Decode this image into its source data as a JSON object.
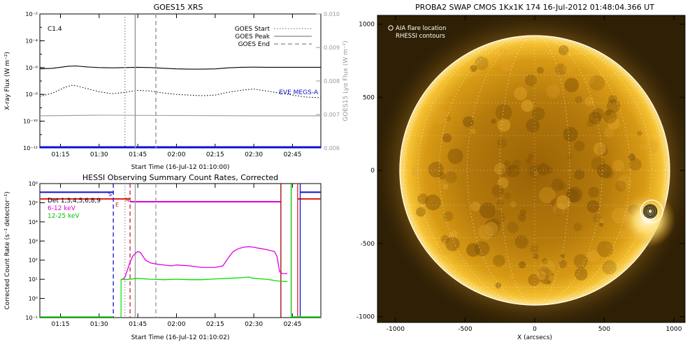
{
  "goes": {
    "title": "GOES15 XRS",
    "flare_class": "C1.4",
    "xlabel": "Start Time (16-Jul-12 01:10:00)",
    "ylabel": "X-ray Flux (W m⁻²)",
    "ylabel_right": "GOES15 Lyα Flux (W m⁻²)",
    "eve_label": "EVE MEGS-A",
    "legend": [
      {
        "label": "GOES Start",
        "style": "dotted"
      },
      {
        "label": "GOES Peak",
        "style": "solid"
      },
      {
        "label": "GOES End",
        "style": "dashed"
      }
    ]
  },
  "hessi": {
    "title": "HESSI Observing Summary Count Rates, Corrected",
    "xlabel": "Start Time (16-Jul-12 01:10:02)",
    "ylabel": "Corrected Count Rate (s⁻¹ detector⁻¹)",
    "legend": [
      {
        "label": "Det 1,3,4,5,6,8,9",
        "color": "#000000"
      },
      {
        "label": "6-12 keV",
        "color": "#e000e0"
      },
      {
        "label": "12-25 keV",
        "color": "#00e000"
      }
    ],
    "flags": {
      "S": "S",
      "N": "N",
      "E": "E"
    }
  },
  "swap": {
    "title": "PROBA2 SWAP CMOS 1Kx1K 174 16-Jul-2012 01:48:04.366 UT",
    "xlabel": "X (arcsecs)",
    "legend": [
      {
        "label": "AIA flare location",
        "symbol": "circle"
      },
      {
        "label": "RHESSI contours",
        "symbol": "none"
      }
    ]
  },
  "chart_data": [
    {
      "type": "line",
      "title": "GOES15 XRS",
      "xlabel": "Start Time (16-Jul-12 01:10:00)",
      "ylabel": "X-ray Flux (W m⁻²)",
      "ylabel_right": "GOES15 Lyα Flux (W m⁻²)",
      "x_ticks": [
        "01:15",
        "01:30",
        "01:45",
        "02:00",
        "02:15",
        "02:30",
        "02:45"
      ],
      "x_ticks_min": [
        15,
        30,
        45,
        60,
        75,
        90,
        105
      ],
      "xlim_min": [
        7,
        116
      ],
      "y_scale": "log",
      "ylim": [
        1e-12,
        0.01
      ],
      "y_ticks": [
        "10⁻¹²",
        "10⁻¹⁰",
        "10⁻⁸",
        "10⁻⁶",
        "10⁻⁴",
        "10⁻²"
      ],
      "y_tick_exp": [
        -12,
        -10,
        -8,
        -6,
        -4,
        -2
      ],
      "y_right_ticks": [
        "0.006",
        "0.007",
        "0.008",
        "0.009",
        "0.010"
      ],
      "y_right_values": [
        0.006,
        0.007,
        0.008,
        0.009,
        0.01
      ],
      "ylim_right": [
        0.006,
        0.01
      ],
      "series": [
        {
          "name": "",
          "color": "#000000",
          "style": "solid",
          "x": [
            7,
            12,
            18,
            21,
            25,
            30,
            35,
            40,
            45,
            50,
            55,
            60,
            65,
            70,
            75,
            80,
            85,
            90,
            95,
            100,
            105,
            110,
            116
          ],
          "log_y": [
            -6.1,
            -6.05,
            -5.9,
            -5.88,
            -5.95,
            -6.0,
            -6.02,
            -6.0,
            -5.98,
            -6.0,
            -6.05,
            -6.1,
            -6.12,
            -6.12,
            -6.1,
            -6.02,
            -5.98,
            -5.97,
            -5.98,
            -5.98,
            -5.98,
            -5.98,
            -5.98
          ]
        },
        {
          "name": "",
          "color": "#000000",
          "style": "dotted",
          "x": [
            7,
            12,
            17,
            20,
            25,
            30,
            35,
            40,
            45,
            50,
            55,
            60,
            65,
            70,
            75,
            80,
            85,
            90,
            95,
            100,
            105,
            110,
            116
          ],
          "log_y": [
            -8.15,
            -7.9,
            -7.45,
            -7.3,
            -7.55,
            -7.8,
            -7.95,
            -7.85,
            -7.7,
            -7.75,
            -7.9,
            -8.0,
            -8.05,
            -8.1,
            -8.05,
            -7.85,
            -7.7,
            -7.6,
            -7.75,
            -7.9,
            -8.05,
            -8.2,
            -8.25
          ]
        },
        {
          "name": "",
          "color": "#999999",
          "style": "solid",
          "x": [
            7,
            30,
            60,
            90,
            116
          ],
          "log_y": [
            -9.6,
            -9.55,
            -9.58,
            -9.6,
            -9.6
          ]
        },
        {
          "name": "EVE MEGS-A",
          "color": "#1010d0",
          "style": "thick",
          "x": [
            7,
            116
          ],
          "log_y": [
            -11.95,
            -11.95
          ]
        }
      ],
      "markers": [
        {
          "name": "GOES Start",
          "x": 40,
          "style": "dotted"
        },
        {
          "name": "GOES Peak",
          "x": 44,
          "style": "solid"
        },
        {
          "name": "GOES End",
          "x": 52,
          "style": "dashed"
        }
      ]
    },
    {
      "type": "line",
      "title": "HESSI Observing Summary Count Rates, Corrected",
      "xlabel": "Start Time (16-Jul-12 01:10:02)",
      "ylabel": "Corrected Count Rate (s⁻¹ detector⁻¹)",
      "x_ticks": [
        "01:15",
        "01:30",
        "01:45",
        "02:00",
        "02:15",
        "02:30",
        "02:45"
      ],
      "x_ticks_min": [
        15,
        30,
        45,
        60,
        75,
        90,
        105
      ],
      "xlim_min": [
        7,
        116
      ],
      "y_scale": "log",
      "ylim": [
        0.1,
        1000000.0
      ],
      "y_ticks": [
        "10⁻¹",
        "10⁰",
        "10¹",
        "10²",
        "10³",
        "10⁴",
        "10⁵",
        "10⁶"
      ],
      "y_tick_exp": [
        -1,
        0,
        1,
        2,
        3,
        4,
        5,
        6
      ],
      "series": [
        {
          "name": "6-12 keV",
          "color": "#e000e0",
          "x": [
            38.5,
            39,
            40,
            41,
            42,
            43,
            44,
            45,
            46,
            47,
            48,
            50,
            52,
            55,
            58,
            60,
            65,
            70,
            75,
            78,
            80,
            82,
            84,
            86,
            88,
            90,
            92,
            95,
            98,
            99,
            100,
            101,
            102,
            103
          ],
          "log_y": [
            1.0,
            1.0,
            1.1,
            1.5,
            1.9,
            2.2,
            2.35,
            2.45,
            2.4,
            2.2,
            2.0,
            1.85,
            1.8,
            1.75,
            1.7,
            1.75,
            1.7,
            1.62,
            1.62,
            1.7,
            2.1,
            2.45,
            2.6,
            2.68,
            2.7,
            2.68,
            2.62,
            2.55,
            2.45,
            2.2,
            1.4,
            1.3,
            1.3,
            1.3
          ]
        },
        {
          "name": "12-25 keV",
          "color": "#00e000",
          "x": [
            38.5,
            40,
            45,
            50,
            55,
            60,
            65,
            70,
            75,
            80,
            85,
            88,
            90,
            95,
            100,
            103
          ],
          "log_y": [
            1.0,
            0.98,
            1.05,
            1.0,
            0.98,
            1.0,
            0.98,
            0.98,
            1.02,
            1.05,
            1.08,
            1.12,
            1.05,
            1.0,
            0.9,
            0.88
          ]
        }
      ],
      "flag_lines": [
        {
          "name": "S",
          "color": "#1010d0",
          "y_exp": 5.55,
          "x": [
            7,
            35.5
          ]
        },
        {
          "name": "E",
          "color": "#e02020",
          "y_exp": 5.2,
          "x": [
            7,
            42
          ]
        },
        {
          "name": "N",
          "color": "#e000e0",
          "y_exp": 5.05,
          "x": [
            42,
            100.5
          ]
        },
        {
          "name": "",
          "color": "#e02020",
          "y_exp": 5.2,
          "x": [
            107,
            116
          ]
        },
        {
          "name": "",
          "color": "#1010d0",
          "y_exp": 5.55,
          "x": [
            108,
            116
          ]
        }
      ],
      "vlines": [
        {
          "x": 35.5,
          "color": "#1010d0",
          "style": "dashed"
        },
        {
          "x": 40,
          "color": "#999999",
          "style": "dotted"
        },
        {
          "x": 42,
          "color": "#c02030",
          "style": "dashed"
        },
        {
          "x": 44,
          "color": "#999999",
          "style": "solid"
        },
        {
          "x": 52,
          "color": "#999999",
          "style": "dashed"
        },
        {
          "x": 100.5,
          "color": "#a00000",
          "style": "solid"
        },
        {
          "x": 104.5,
          "color": "#00c000",
          "style": "solid"
        },
        {
          "x": 108,
          "color": "#1010d0",
          "style": "solid"
        },
        {
          "x": 107,
          "color": "#e02020",
          "style": "solid"
        }
      ]
    },
    {
      "type": "heatmap",
      "title": "PROBA2 SWAP CMOS 1Kx1K 174 16-Jul-2012 01:48:04.366 UT",
      "xlabel": "X (arcsecs)",
      "ylabel": "",
      "xlim": [
        -1130,
        1080
      ],
      "ylim": [
        -1040,
        1060
      ],
      "x_ticks": [
        -1000,
        -500,
        0,
        500,
        1000
      ],
      "y_ticks": [
        -1000,
        -500,
        0,
        500,
        1000
      ],
      "solar_radius_arcsec": 945,
      "aia_flare_location": [
        840,
        -280
      ],
      "rhessi_contours_center": [
        830,
        -280
      ],
      "rhessi_contour_radii": [
        15,
        24,
        32,
        40,
        48
      ]
    }
  ]
}
